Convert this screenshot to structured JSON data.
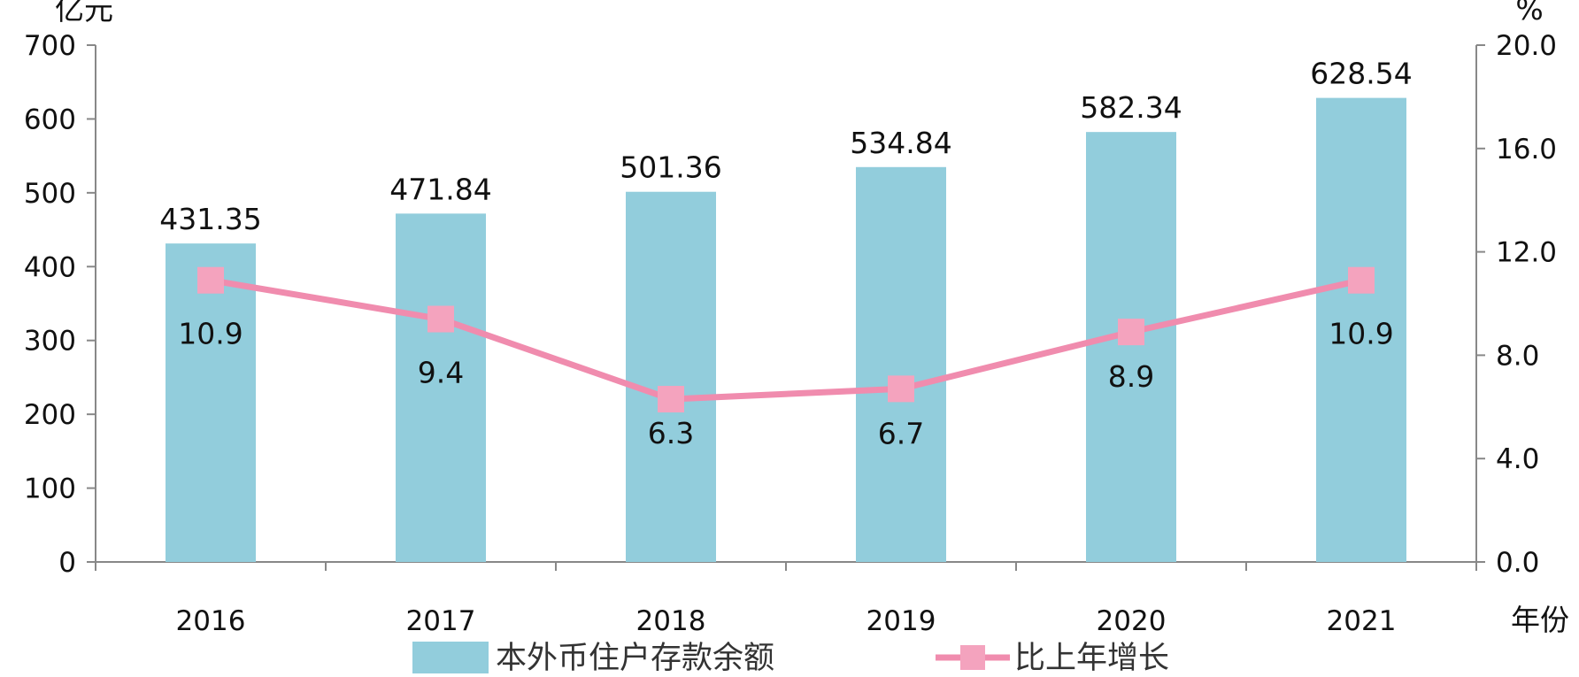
{
  "chart_data": {
    "type": "bar",
    "categories": [
      "2016",
      "2017",
      "2018",
      "2019",
      "2020",
      "2021"
    ],
    "series": [
      {
        "name": "本外币住户存款余额",
        "type": "bar",
        "axis": "left",
        "color": "#92CDDC",
        "values": [
          431.35,
          471.84,
          501.36,
          534.84,
          582.34,
          628.54
        ],
        "labels": [
          "431.35",
          "471.84",
          "501.36",
          "534.84",
          "582.34",
          "628.54"
        ]
      },
      {
        "name": "比上年增长",
        "type": "line",
        "axis": "right",
        "color": "#F08CAE",
        "marker": "square",
        "values": [
          10.9,
          9.4,
          6.3,
          6.7,
          8.9,
          10.9
        ],
        "labels": [
          "10.9",
          "9.4",
          "6.3",
          "6.7",
          "8.9",
          "10.9"
        ]
      }
    ],
    "y_left": {
      "unit": "亿元",
      "lim": [
        0,
        700
      ],
      "ticks": [
        0,
        100,
        200,
        300,
        400,
        500,
        600,
        700
      ],
      "tick_labels": [
        "0",
        "100",
        "200",
        "300",
        "400",
        "500",
        "600",
        "700"
      ]
    },
    "y_right": {
      "unit": "%",
      "lim": [
        0,
        20
      ],
      "ticks": [
        0,
        4,
        8,
        12,
        16,
        20
      ],
      "tick_labels": [
        "0.0",
        "4.0",
        "8.0",
        "12.0",
        "16.0",
        "20.0"
      ]
    },
    "x_unit": "年份",
    "grid": false,
    "legend_position": "bottom"
  }
}
